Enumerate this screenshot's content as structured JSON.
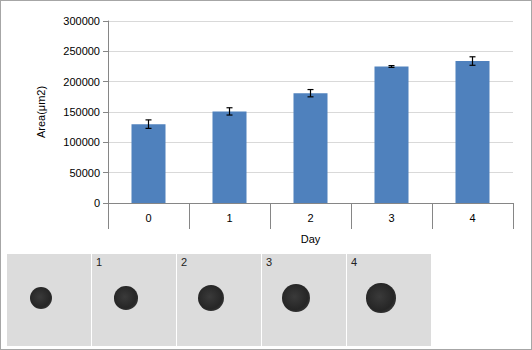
{
  "chart_data": {
    "type": "bar",
    "categories": [
      "0",
      "1",
      "2",
      "3",
      "4"
    ],
    "values": [
      130000,
      151000,
      181000,
      225000,
      234000
    ],
    "errors": [
      7000,
      6000,
      6000,
      1500,
      7000
    ],
    "color": "#4f81bd",
    "x_label": "Day",
    "y_label": "Area(μm2)",
    "ylim": [
      0,
      300000
    ],
    "yticks": [
      0,
      50000,
      100000,
      150000,
      200000,
      250000,
      300000
    ],
    "grid": true
  },
  "image_panels": {
    "labels": [
      null,
      "1",
      "2",
      "3",
      "4"
    ]
  }
}
